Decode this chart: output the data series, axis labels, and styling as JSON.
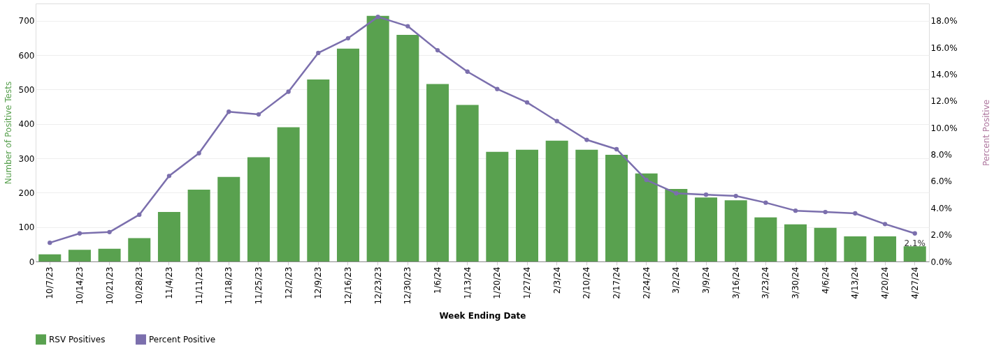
{
  "chart_data": {
    "type": "bar",
    "xlabel": "Week Ending Date",
    "ylabel": "Number of Positive Tests",
    "y2label": "Percent Positive",
    "categories": [
      "10/7/23",
      "10/14/23",
      "10/21/23",
      "10/28/23",
      "11/4/23",
      "11/11/23",
      "11/18/23",
      "11/25/23",
      "12/2/23",
      "12/9/23",
      "12/16/23",
      "12/23/23",
      "12/30/23",
      "1/6/24",
      "1/13/24",
      "1/20/24",
      "1/27/24",
      "2/3/24",
      "2/10/24",
      "2/17/24",
      "2/24/24",
      "3/2/24",
      "3/9/24",
      "3/16/24",
      "3/23/24",
      "3/30/24",
      "4/6/24",
      "4/13/24",
      "4/20/24",
      "4/27/24"
    ],
    "series": [
      {
        "name": "RSV Positives",
        "color": "#59a14f",
        "values": [
          21,
          34,
          37,
          68,
          144,
          209,
          246,
          303,
          390,
          529,
          619,
          714,
          659,
          516,
          455,
          319,
          325,
          351,
          325,
          310,
          256,
          211,
          186,
          178,
          128,
          108,
          98,
          73,
          73,
          44
        ]
      },
      {
        "name": "Percent Positive",
        "type": "line",
        "axis": "y2",
        "color": "#7b6fad",
        "values": [
          1.4,
          2.1,
          2.2,
          3.5,
          6.4,
          8.1,
          11.2,
          11.0,
          12.7,
          15.6,
          16.7,
          18.3,
          17.6,
          15.8,
          14.2,
          12.9,
          11.9,
          10.5,
          9.1,
          8.4,
          6.1,
          5.1,
          5.0,
          4.9,
          4.4,
          3.8,
          3.7,
          3.6,
          2.8,
          2.1
        ],
        "value_labels": [
          null,
          null,
          null,
          null,
          null,
          null,
          null,
          null,
          null,
          null,
          null,
          null,
          null,
          null,
          null,
          null,
          null,
          null,
          null,
          null,
          null,
          null,
          null,
          null,
          null,
          null,
          null,
          null,
          null,
          "2.1%"
        ]
      }
    ],
    "ylim": [
      0,
      750
    ],
    "yticks": [
      0,
      100,
      200,
      300,
      400,
      500,
      600,
      700
    ],
    "y2lim": [
      0,
      19.3
    ],
    "y2ticks": [
      {
        "value": 0,
        "label": "0.0%"
      },
      {
        "value": 2,
        "label": "2.0%"
      },
      {
        "value": 4,
        "label": "4.0%"
      },
      {
        "value": 6,
        "label": "6.0%"
      },
      {
        "value": 8,
        "label": "8.0%"
      },
      {
        "value": 10,
        "label": "10.0%"
      },
      {
        "value": 12,
        "label": "12.0%"
      },
      {
        "value": 14,
        "label": "14.0%"
      },
      {
        "value": 16,
        "label": "16.0%"
      },
      {
        "value": 18,
        "label": "18.0%"
      }
    ],
    "grid": "y",
    "legend": "bottom left",
    "marker": "circle",
    "line_style": "solid"
  }
}
